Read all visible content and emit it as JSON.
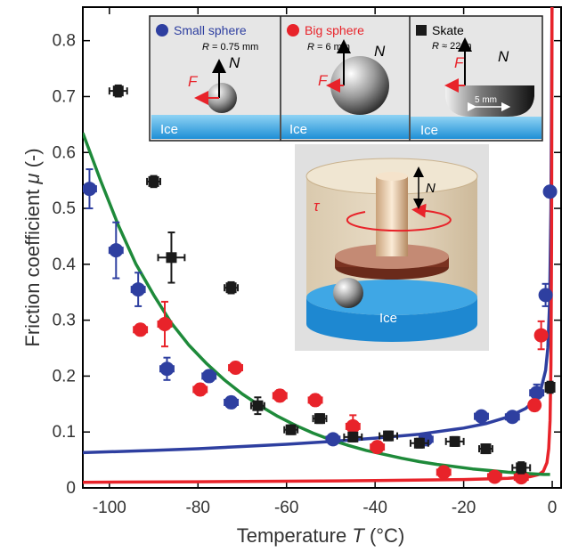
{
  "chart_data": {
    "type": "scatter",
    "xlabel": "Temperature",
    "xlabel_symbol": "T",
    "xlabel_unit": "(°C)",
    "ylabel": "Friction coefficient",
    "ylabel_symbol": "μ",
    "ylabel_unit": "(-)",
    "xlim": [
      -106,
      2
    ],
    "ylim": [
      0,
      0.86
    ],
    "xticks": [
      -100,
      -80,
      -60,
      -40,
      -20,
      0
    ],
    "yticks": [
      0,
      0.1,
      0.2,
      0.3,
      0.4,
      0.5,
      0.6,
      0.7,
      0.8
    ],
    "grid": false,
    "colors": {
      "small": "#2E3FA0",
      "big": "#E8232A",
      "skate": "#1A1A1A",
      "fit": "#1E8A3A"
    },
    "series": [
      {
        "name": "Small sphere",
        "marker": "circle",
        "color": "#2E3FA0",
        "points": [
          {
            "x": -104.5,
            "y": 0.535,
            "xe": 1.5,
            "ye": 0.035
          },
          {
            "x": -98.5,
            "y": 0.425,
            "xe": 1.5,
            "ye": 0.05
          },
          {
            "x": -93.5,
            "y": 0.355,
            "xe": 1.5,
            "ye": 0.03
          },
          {
            "x": -87,
            "y": 0.213,
            "xe": 1.5,
            "ye": 0.02
          },
          {
            "x": -77.5,
            "y": 0.2,
            "xe": 1.5,
            "ye": 0.01
          },
          {
            "x": -72.5,
            "y": 0.153,
            "xe": 1.5,
            "ye": 0.01
          },
          {
            "x": -49.5,
            "y": 0.087,
            "xe": 1.5,
            "ye": 0.008
          },
          {
            "x": -28.5,
            "y": 0.087,
            "xe": 1.5,
            "ye": 0.008
          },
          {
            "x": -16,
            "y": 0.128,
            "xe": 1.5,
            "ye": 0.008
          },
          {
            "x": -9,
            "y": 0.127,
            "xe": 1.5,
            "ye": 0.008
          },
          {
            "x": -3.5,
            "y": 0.17,
            "xe": 1.5,
            "ye": 0.015
          },
          {
            "x": -1.5,
            "y": 0.345,
            "xe": 0.8,
            "ye": 0.02
          },
          {
            "x": -0.5,
            "y": 0.53,
            "xe": 0.5,
            "ye": 0.01
          }
        ]
      },
      {
        "name": "Big sphere",
        "marker": "circle",
        "color": "#E8232A",
        "points": [
          {
            "x": -93,
            "y": 0.283,
            "xe": 1.5,
            "ye": 0.01
          },
          {
            "x": -87.5,
            "y": 0.293,
            "xe": 1.5,
            "ye": 0.04
          },
          {
            "x": -79.5,
            "y": 0.176,
            "xe": 1.5,
            "ye": 0.01
          },
          {
            "x": -71.5,
            "y": 0.215,
            "xe": 1.5,
            "ye": 0.01
          },
          {
            "x": -61.5,
            "y": 0.165,
            "xe": 1.5,
            "ye": 0.01
          },
          {
            "x": -53.5,
            "y": 0.157,
            "xe": 1.5,
            "ye": 0.01
          },
          {
            "x": -45,
            "y": 0.11,
            "xe": 1.5,
            "ye": 0.02
          },
          {
            "x": -39.5,
            "y": 0.073,
            "xe": 1.5,
            "ye": 0.01
          },
          {
            "x": -24.5,
            "y": 0.028,
            "xe": 1.5,
            "ye": 0.008
          },
          {
            "x": -13,
            "y": 0.02,
            "xe": 1.5,
            "ye": 0.008
          },
          {
            "x": -7,
            "y": 0.019,
            "xe": 1.5,
            "ye": 0.008
          },
          {
            "x": -4,
            "y": 0.148,
            "xe": 1,
            "ye": 0.01
          },
          {
            "x": -2.5,
            "y": 0.273,
            "xe": 0.8,
            "ye": 0.025
          }
        ]
      },
      {
        "name": "Skate",
        "marker": "square",
        "color": "#1A1A1A",
        "points": [
          {
            "x": -98,
            "y": 0.71,
            "xe": 2,
            "ye": 0.01
          },
          {
            "x": -90,
            "y": 0.548,
            "xe": 1.5,
            "ye": 0.01
          },
          {
            "x": -86,
            "y": 0.412,
            "xe": 3,
            "ye": 0.045
          },
          {
            "x": -72.5,
            "y": 0.358,
            "xe": 1.5,
            "ye": 0.01
          },
          {
            "x": -66.5,
            "y": 0.147,
            "xe": 1.5,
            "ye": 0.015
          },
          {
            "x": -59,
            "y": 0.104,
            "xe": 1.5,
            "ye": 0.008
          },
          {
            "x": -52.5,
            "y": 0.124,
            "xe": 1.5,
            "ye": 0.008
          },
          {
            "x": -45,
            "y": 0.091,
            "xe": 2,
            "ye": 0.008
          },
          {
            "x": -37,
            "y": 0.093,
            "xe": 2,
            "ye": 0.008
          },
          {
            "x": -30,
            "y": 0.08,
            "xe": 2,
            "ye": 0.008
          },
          {
            "x": -22,
            "y": 0.083,
            "xe": 2,
            "ye": 0.008
          },
          {
            "x": -15,
            "y": 0.07,
            "xe": 1.5,
            "ye": 0.008
          },
          {
            "x": -7,
            "y": 0.036,
            "xe": 2,
            "ye": 0.01
          },
          {
            "x": -0.5,
            "y": 0.18,
            "xe": 0.6,
            "ye": 0.01
          }
        ]
      }
    ],
    "curves": [
      {
        "name": "Small sphere",
        "color": "#2E3FA0",
        "points": [
          [
            -106,
            0.063
          ],
          [
            -90,
            0.067
          ],
          [
            -80,
            0.07
          ],
          [
            -70,
            0.074
          ],
          [
            -60,
            0.078
          ],
          [
            -50,
            0.083
          ],
          [
            -40,
            0.089
          ],
          [
            -30,
            0.096
          ],
          [
            -20,
            0.107
          ],
          [
            -15,
            0.115
          ],
          [
            -10,
            0.127
          ],
          [
            -6,
            0.142
          ],
          [
            -4,
            0.156
          ],
          [
            -2.5,
            0.178
          ],
          [
            -1.5,
            0.21
          ],
          [
            -1,
            0.25
          ],
          [
            -0.6,
            0.33
          ],
          [
            -0.3,
            0.5
          ],
          [
            -0.15,
            0.7
          ],
          [
            -0.05,
            0.86
          ]
        ]
      },
      {
        "name": "Big sphere",
        "color": "#E8232A",
        "points": [
          [
            -106,
            0.01
          ],
          [
            -80,
            0.011
          ],
          [
            -60,
            0.012
          ],
          [
            -40,
            0.013
          ],
          [
            -20,
            0.015
          ],
          [
            -10,
            0.017
          ],
          [
            -5,
            0.02
          ],
          [
            -3,
            0.024
          ],
          [
            -2,
            0.03
          ],
          [
            -1.2,
            0.045
          ],
          [
            -0.8,
            0.07
          ],
          [
            -0.5,
            0.12
          ],
          [
            -0.3,
            0.22
          ],
          [
            -0.15,
            0.45
          ],
          [
            -0.05,
            0.86
          ]
        ]
      },
      {
        "name": "Fit",
        "color": "#1E8A3A",
        "points": [
          [
            -106,
            0.635
          ],
          [
            -102,
            0.55
          ],
          [
            -98,
            0.47
          ],
          [
            -94,
            0.4
          ],
          [
            -90,
            0.345
          ],
          [
            -86,
            0.295
          ],
          [
            -82,
            0.255
          ],
          [
            -78,
            0.222
          ],
          [
            -74,
            0.193
          ],
          [
            -70,
            0.168
          ],
          [
            -66,
            0.147
          ],
          [
            -62,
            0.128
          ],
          [
            -58,
            0.112
          ],
          [
            -54,
            0.098
          ],
          [
            -50,
            0.086
          ],
          [
            -46,
            0.076
          ],
          [
            -42,
            0.067
          ],
          [
            -38,
            0.06
          ],
          [
            -34,
            0.053
          ],
          [
            -30,
            0.047
          ],
          [
            -26,
            0.042
          ],
          [
            -22,
            0.038
          ],
          [
            -18,
            0.034
          ],
          [
            -14,
            0.031
          ],
          [
            -10,
            0.028
          ],
          [
            -6,
            0.026
          ],
          [
            -2,
            0.024
          ],
          [
            -0.5,
            0.024
          ]
        ]
      }
    ],
    "insets": {
      "panels": [
        {
          "label": "Small sphere",
          "r_label": "R",
          "r_value": "= 0.75 mm",
          "ice": "Ice",
          "force_f": "F",
          "force_n": "N"
        },
        {
          "label": "Big sphere",
          "r_label": "R",
          "r_value": "= 6 mm",
          "ice": "Ice",
          "force_f": "F",
          "force_n": "N"
        },
        {
          "label": "Skate",
          "r_label": "R",
          "r_value": "≈ 22 m",
          "ice": "Ice",
          "force_f": "F",
          "force_n": "N",
          "scale": "5 mm"
        }
      ],
      "rheometer": {
        "tau": "τ",
        "normal": "N",
        "ice": "Ice"
      }
    }
  }
}
